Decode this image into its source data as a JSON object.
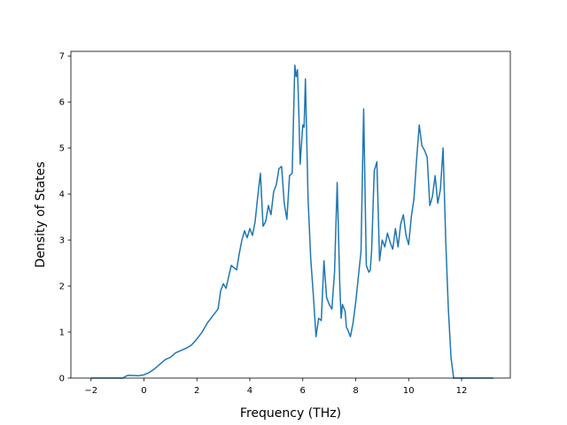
{
  "chart_data": {
    "type": "line",
    "xlabel": "Frequency (THz)",
    "ylabel": "Density of States",
    "xlim": [
      -2.76,
      13.84
    ],
    "ylim": [
      0,
      7.1
    ],
    "xticks": [
      -2,
      0,
      2,
      4,
      6,
      8,
      10,
      12
    ],
    "xtick_labels": [
      "−2",
      "0",
      "2",
      "4",
      "6",
      "8",
      "10",
      "12"
    ],
    "yticks": [
      0,
      1,
      2,
      3,
      4,
      5,
      6,
      7
    ],
    "ytick_labels": [
      "0",
      "1",
      "2",
      "3",
      "4",
      "5",
      "6",
      "7"
    ],
    "grid": false,
    "series": [
      {
        "color": "#1f77b4",
        "x": [
          -2.0,
          -0.8,
          -0.65,
          -0.55,
          -0.2,
          0.0,
          0.2,
          0.4,
          0.6,
          0.8,
          1.0,
          1.2,
          1.4,
          1.6,
          1.8,
          2.0,
          2.2,
          2.4,
          2.6,
          2.8,
          2.9,
          3.0,
          3.1,
          3.2,
          3.3,
          3.4,
          3.5,
          3.6,
          3.7,
          3.8,
          3.9,
          4.0,
          4.1,
          4.2,
          4.3,
          4.4,
          4.5,
          4.6,
          4.7,
          4.8,
          4.9,
          5.0,
          5.1,
          5.2,
          5.3,
          5.4,
          5.5,
          5.6,
          5.7,
          5.75,
          5.8,
          5.85,
          5.9,
          6.0,
          6.05,
          6.1,
          6.15,
          6.2,
          6.3,
          6.4,
          6.5,
          6.6,
          6.7,
          6.8,
          6.9,
          7.0,
          7.1,
          7.2,
          7.3,
          7.4,
          7.45,
          7.5,
          7.6,
          7.65,
          7.7,
          7.8,
          7.9,
          8.0,
          8.1,
          8.2,
          8.3,
          8.4,
          8.5,
          8.55,
          8.6,
          8.7,
          8.8,
          8.9,
          9.0,
          9.1,
          9.2,
          9.3,
          9.4,
          9.5,
          9.6,
          9.7,
          9.8,
          9.9,
          10.0,
          10.1,
          10.2,
          10.3,
          10.4,
          10.5,
          10.6,
          10.7,
          10.8,
          10.9,
          11.0,
          11.1,
          11.2,
          11.3,
          11.4,
          11.5,
          11.6,
          11.7,
          11.8,
          11.9,
          12.0,
          12.5,
          13.2
        ],
        "y": [
          0.0,
          0.0,
          0.05,
          0.06,
          0.05,
          0.07,
          0.12,
          0.2,
          0.3,
          0.4,
          0.45,
          0.55,
          0.6,
          0.65,
          0.72,
          0.85,
          1.0,
          1.2,
          1.35,
          1.5,
          1.9,
          2.05,
          1.95,
          2.2,
          2.45,
          2.4,
          2.35,
          2.7,
          3.0,
          3.2,
          3.05,
          3.25,
          3.1,
          3.4,
          3.95,
          4.45,
          3.3,
          3.4,
          3.75,
          3.55,
          4.05,
          4.2,
          4.55,
          4.6,
          3.8,
          3.45,
          4.4,
          4.45,
          6.8,
          6.55,
          6.7,
          5.8,
          4.65,
          5.5,
          5.45,
          6.5,
          5.2,
          3.9,
          2.6,
          1.8,
          0.9,
          1.3,
          1.25,
          2.55,
          1.75,
          1.6,
          1.5,
          2.3,
          4.25,
          2.0,
          1.3,
          1.6,
          1.45,
          1.1,
          1.05,
          0.9,
          1.2,
          1.65,
          2.2,
          2.75,
          5.85,
          2.45,
          2.3,
          2.35,
          2.75,
          4.5,
          4.7,
          2.55,
          3.0,
          2.85,
          3.15,
          2.95,
          2.8,
          3.25,
          2.85,
          3.35,
          3.55,
          3.1,
          2.9,
          3.5,
          3.9,
          4.75,
          5.5,
          5.05,
          4.95,
          4.8,
          3.75,
          3.95,
          4.4,
          3.8,
          4.1,
          5.0,
          3.0,
          1.5,
          0.45,
          0.0,
          0.0,
          0.0,
          0.0,
          0.0,
          0.0
        ]
      }
    ]
  }
}
